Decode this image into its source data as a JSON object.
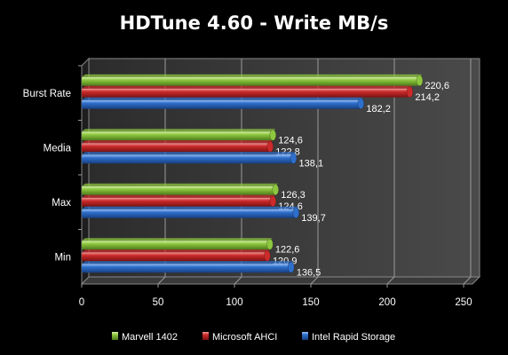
{
  "chart_data": {
    "type": "bar",
    "orientation": "horizontal",
    "title": "HDTune 4.60 - Write MB/s",
    "categories": [
      "Burst Rate",
      "Media",
      "Max",
      "Min"
    ],
    "series": [
      {
        "name": "Marvell 1402",
        "color": "#8dc63f",
        "values": [
          220.6,
          124.6,
          126.3,
          122.6
        ],
        "labels": [
          "220,6",
          "124,6",
          "126,3",
          "122,6"
        ]
      },
      {
        "name": "Microsoft AHCI",
        "color": "#cc2b2b",
        "values": [
          214.2,
          122.8,
          124.6,
          120.9
        ],
        "labels": [
          "214,2",
          "122,8",
          "124,6",
          "120,9"
        ]
      },
      {
        "name": "Intel Rapid Storage",
        "color": "#2f6fcc",
        "values": [
          182.2,
          138.1,
          139.7,
          136.5
        ],
        "labels": [
          "182,2",
          "138,1",
          "139,7",
          "136,5"
        ]
      }
    ],
    "xlim": [
      0,
      250
    ],
    "xticks": [
      "0",
      "50",
      "100",
      "150",
      "200",
      "250"
    ],
    "grid": true,
    "legend_position": "bottom"
  }
}
